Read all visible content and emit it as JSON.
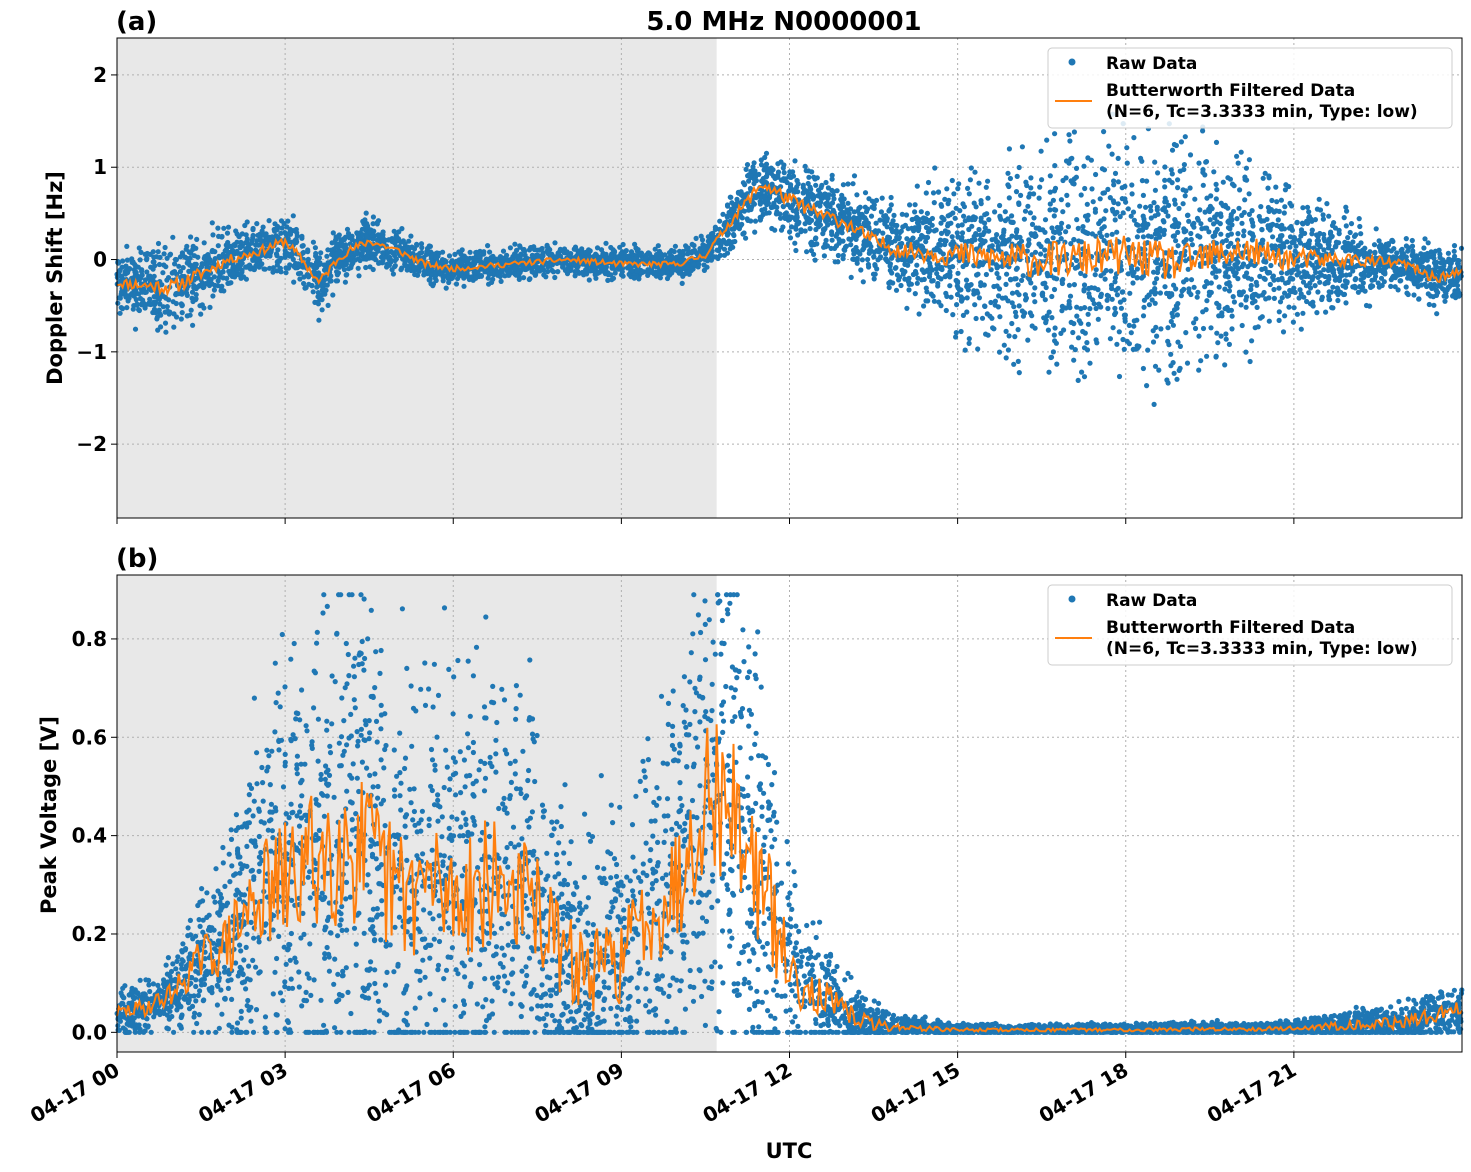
{
  "figure_title": "5.0 MHz N0000001",
  "xlabel": "UTC",
  "colors": {
    "raw": "#1f77b4",
    "filtered": "#ff7f0e",
    "shade": "#e8e8e8"
  },
  "chart_data": [
    {
      "type": "scatter",
      "panel_label": "(a)",
      "title": "5.0 MHz N0000001",
      "xlabel": "",
      "ylabel": "Doppler Shift [Hz]",
      "xlim": [
        "04-17 00:00",
        "04-18 00:00"
      ],
      "ylim": [
        -2.8,
        2.4
      ],
      "yticks": [
        2,
        1,
        0,
        -1,
        -2
      ],
      "ytick_labels": [
        "2",
        "1",
        "0",
        "−1",
        "−2"
      ],
      "xtick_labels": [
        "04-17 00",
        "04-17 03",
        "04-17 06",
        "04-17 09",
        "04-17 12",
        "04-17 15",
        "04-17 18",
        "04-17 21"
      ],
      "grid": true,
      "legend": {
        "placement": "top-right",
        "raw": "Raw Data",
        "filtered_line1": "Butterworth Filtered Data",
        "filtered_line2": "(N=6, Tc=3.3333 min, Type: low)"
      },
      "shaded_region_hours": [
        0,
        10.7
      ],
      "series": [
        {
          "name": "Raw Data",
          "style": "points"
        },
        {
          "name": "Butterworth Filtered Data",
          "style": "line"
        }
      ],
      "filtered_profile_hours": [
        0,
        0.5,
        1,
        1.5,
        2,
        2.5,
        3,
        3.3,
        3.6,
        4,
        4.5,
        5,
        5.5,
        6,
        7,
        8,
        9,
        10,
        10.5,
        11,
        11.5,
        12,
        12.5,
        13,
        13.5,
        14,
        15,
        16,
        17,
        18,
        19,
        20,
        21,
        22,
        23,
        23.5,
        24
      ],
      "filtered_profile_values": [
        -0.25,
        -0.28,
        -0.3,
        -0.15,
        0.0,
        0.08,
        0.2,
        0.0,
        -0.25,
        0.05,
        0.2,
        0.1,
        -0.05,
        -0.1,
        -0.05,
        0.0,
        -0.05,
        -0.05,
        0.05,
        0.45,
        0.82,
        0.65,
        0.5,
        0.4,
        0.2,
        0.1,
        0.05,
        0.0,
        0.0,
        0.05,
        -0.05,
        0.1,
        0.0,
        0.0,
        -0.05,
        -0.2,
        -0.15
      ],
      "raw_spread_hours": [
        0,
        1,
        2,
        3,
        4,
        5,
        6,
        7,
        8,
        9,
        10,
        10.7,
        11.5,
        12,
        13,
        14,
        15,
        16,
        17,
        18,
        19,
        20,
        21,
        22,
        23,
        24
      ],
      "raw_spread_values": [
        0.2,
        0.35,
        0.2,
        0.2,
        0.2,
        0.15,
        0.12,
        0.12,
        0.12,
        0.12,
        0.12,
        0.15,
        0.3,
        0.3,
        0.3,
        0.35,
        0.55,
        0.75,
        0.8,
        0.85,
        0.85,
        0.7,
        0.5,
        0.3,
        0.2,
        0.25
      ]
    },
    {
      "type": "scatter",
      "panel_label": "(b)",
      "title": "",
      "xlabel": "UTC",
      "ylabel": "Peak Voltage [V]",
      "xlim": [
        "04-17 00:00",
        "04-18 00:00"
      ],
      "ylim": [
        -0.04,
        0.93
      ],
      "yticks": [
        0.8,
        0.6,
        0.4,
        0.2,
        0.0
      ],
      "ytick_labels": [
        "0.8",
        "0.6",
        "0.4",
        "0.2",
        "0.0"
      ],
      "xtick_labels": [
        "04-17 00",
        "04-17 03",
        "04-17 06",
        "04-17 09",
        "04-17 12",
        "04-17 15",
        "04-17 18",
        "04-17 21"
      ],
      "grid": true,
      "legend": {
        "placement": "top-right",
        "raw": "Raw Data",
        "filtered_line1": "Butterworth Filtered Data",
        "filtered_line2": "(N=6, Tc=3.3333 min, Type: low)"
      },
      "shaded_region_hours": [
        0,
        10.7
      ],
      "series": [
        {
          "name": "Raw Data",
          "style": "points"
        },
        {
          "name": "Butterworth Filtered Data",
          "style": "line"
        }
      ],
      "filtered_profile_hours": [
        0,
        0.5,
        1,
        1.5,
        2,
        2.5,
        3,
        3.5,
        4,
        4.5,
        5,
        5.5,
        6,
        6.5,
        7,
        7.5,
        8,
        8.5,
        9,
        9.5,
        10,
        10.5,
        11,
        11.5,
        12,
        12.5,
        13,
        13.5,
        14,
        15,
        18,
        21,
        22,
        23,
        24
      ],
      "filtered_profile_values": [
        0.04,
        0.05,
        0.08,
        0.15,
        0.18,
        0.28,
        0.3,
        0.35,
        0.4,
        0.35,
        0.28,
        0.3,
        0.28,
        0.3,
        0.3,
        0.25,
        0.15,
        0.12,
        0.15,
        0.25,
        0.3,
        0.5,
        0.45,
        0.3,
        0.12,
        0.08,
        0.04,
        0.015,
        0.01,
        0.005,
        0.005,
        0.008,
        0.015,
        0.02,
        0.05
      ],
      "raw_spread_hours": [
        0,
        1,
        2,
        3,
        4,
        5,
        6,
        7,
        8,
        9,
        10,
        10.5,
        11,
        11.5,
        12,
        12.5,
        13,
        14,
        15,
        18,
        21,
        22,
        23,
        24
      ],
      "raw_spread_values": [
        0.03,
        0.05,
        0.15,
        0.3,
        0.4,
        0.32,
        0.3,
        0.3,
        0.2,
        0.2,
        0.3,
        0.35,
        0.35,
        0.3,
        0.15,
        0.1,
        0.05,
        0.015,
        0.008,
        0.008,
        0.01,
        0.02,
        0.03,
        0.04
      ],
      "raw_peak_max": 0.89
    }
  ]
}
